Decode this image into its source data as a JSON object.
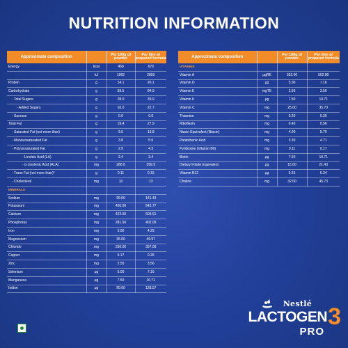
{
  "title": "NUTRITION INFORMATION",
  "left_table": {
    "headers": [
      "Approximate composition",
      "",
      "Per 100g of powder",
      "Per litre of prepared formula"
    ],
    "rows": [
      {
        "name": "Energy",
        "unit": "kcal",
        "per100": "469",
        "perL": "670",
        "indent": 0
      },
      {
        "name": "",
        "unit": "kJ",
        "per100": "1962",
        "perL": "2803",
        "indent": 0
      },
      {
        "name": "Protein",
        "unit": "g",
        "per100": "14.1",
        "perL": "20.1",
        "indent": 0
      },
      {
        "name": "Carbohydrate",
        "unit": "g",
        "per100": "59.5",
        "perL": "84.9",
        "indent": 0
      },
      {
        "name": "- Total Sugars",
        "unit": "g",
        "per100": "28.0",
        "perL": "39.9",
        "indent": 1
      },
      {
        "name": "- Added Sugars",
        "unit": "g",
        "per100": "16.0",
        "perL": "22.7",
        "indent": 2
      },
      {
        "name": "- Sucrose",
        "unit": "g",
        "per100": "0.0",
        "perL": "0.0",
        "indent": 1
      },
      {
        "name": "Total Fat",
        "unit": "g",
        "per100": "19.4",
        "perL": "27.9",
        "indent": 0
      },
      {
        "name": "- Saturated Fat (not more than)",
        "unit": "g",
        "per100": "9.5",
        "perL": "13.8",
        "indent": 1
      },
      {
        "name": "- Monounsaturated Fat",
        "unit": "g",
        "per100": "3.8",
        "perL": "5.6",
        "indent": 1
      },
      {
        "name": "- Polyunsaturated Fat",
        "unit": "g",
        "per100": "2.9",
        "perL": "4.3",
        "indent": 1
      },
      {
        "name": "- Linoleic Acid (LA)",
        "unit": "g",
        "per100": "2.4",
        "perL": "3.4",
        "indent": 3
      },
      {
        "name": "- α-Linolenic Acid (ALA)",
        "unit": "mg",
        "per100": "280.0",
        "perL": "399.9",
        "indent": 3
      },
      {
        "name": "- Trans Fat (not more than)*",
        "unit": "g",
        "per100": "0.11",
        "perL": "0.15",
        "indent": 1
      },
      {
        "name": "- Cholesterol",
        "unit": "mg",
        "per100": "10",
        "perL": "13",
        "indent": 1
      },
      {
        "name": "MINERALS",
        "unit": "",
        "per100": "",
        "perL": "",
        "indent": 0,
        "section": true
      },
      {
        "name": "Sodium",
        "unit": "mg",
        "per100": "99.00",
        "perL": "141.43",
        "indent": 0
      },
      {
        "name": "Potassium",
        "unit": "mg",
        "per100": "450.00",
        "perL": "642.77",
        "indent": 0
      },
      {
        "name": "Calcium",
        "unit": "mg",
        "per100": "422.50",
        "perL": "603.51",
        "indent": 0
      },
      {
        "name": "Phosphorus",
        "unit": "mg",
        "per100": "281.50",
        "perL": "402.09",
        "indent": 0
      },
      {
        "name": "Iron",
        "unit": "mg",
        "per100": "3.00",
        "perL": "4.29",
        "indent": 0
      },
      {
        "name": "Magnesium",
        "unit": "mg",
        "per100": "35.00",
        "perL": "49.97",
        "indent": 0
      },
      {
        "name": "Chloride",
        "unit": "mg",
        "per100": "250.00",
        "perL": "357.09",
        "indent": 0
      },
      {
        "name": "Copper",
        "unit": "mg",
        "per100": "0.17",
        "perL": "0.26",
        "indent": 0
      },
      {
        "name": "Zinc",
        "unit": "mg",
        "per100": "2.50",
        "perL": "3.56",
        "indent": 0
      },
      {
        "name": "Selenium",
        "unit": "μg",
        "per100": "5.00",
        "perL": "7.16",
        "indent": 0
      },
      {
        "name": "Manganese",
        "unit": "μg",
        "per100": "7.50",
        "perL": "10.71",
        "indent": 0
      },
      {
        "name": "Iodine",
        "unit": "μg",
        "per100": "90.00",
        "perL": "128.57",
        "indent": 0
      }
    ]
  },
  "right_table": {
    "headers": [
      "Approximate composition",
      "",
      "Per 100g of powder",
      "Per litre of prepared formula"
    ],
    "rows": [
      {
        "name": "VITAMINS",
        "unit": "",
        "per100": "",
        "perL": "",
        "section": true
      },
      {
        "name": "Vitamin A",
        "unit": "μgRE",
        "per100": "352.00",
        "perL": "502.80"
      },
      {
        "name": "Vitamin D",
        "unit": "μg",
        "per100": "5.00",
        "perL": "7.16"
      },
      {
        "name": "Vitamin E",
        "unit": "mgTE",
        "per100": "2.50",
        "perL": "3.56"
      },
      {
        "name": "Vitamin K",
        "unit": "μg",
        "per100": "7.50",
        "perL": "10.71"
      },
      {
        "name": "Vitamin C",
        "unit": "mg",
        "per100": "25.00",
        "perL": "35.70"
      },
      {
        "name": "Thiamine",
        "unit": "mg",
        "per100": "0.20",
        "perL": "0.30"
      },
      {
        "name": "Riboflavin",
        "unit": "mg",
        "per100": "0.40",
        "perL": "0.56"
      },
      {
        "name": "Niacin Equivalent (Niacin)",
        "unit": "mg",
        "per100": "4.00",
        "perL": "5.70"
      },
      {
        "name": "Pantothenic Acid",
        "unit": "mg",
        "per100": "3.30",
        "perL": "4.71"
      },
      {
        "name": "Pyridoxine (Vitamin B6)",
        "unit": "mg",
        "per100": "0.11",
        "perL": "0.17"
      },
      {
        "name": "Biotin",
        "unit": "μg",
        "per100": "7.50",
        "perL": "10.71"
      },
      {
        "name": "Dietary Folate Equivalent",
        "unit": "μg",
        "per100": "15.00",
        "perL": "21.43"
      },
      {
        "name": "Vitamin B12",
        "unit": "μg",
        "per100": "0.25",
        "perL": "0.34"
      },
      {
        "name": "Choline",
        "unit": "mg",
        "per100": "32.00",
        "perL": "45.73"
      }
    ]
  },
  "brand": {
    "company": "Nestlé",
    "product": "LACTOGEN",
    "stage": "3",
    "variant": "PRO"
  },
  "colors": {
    "background": "#22409a",
    "header_orange": "#f28c28",
    "section_text": "#f5a043",
    "veg_green": "#2e8b3a"
  }
}
